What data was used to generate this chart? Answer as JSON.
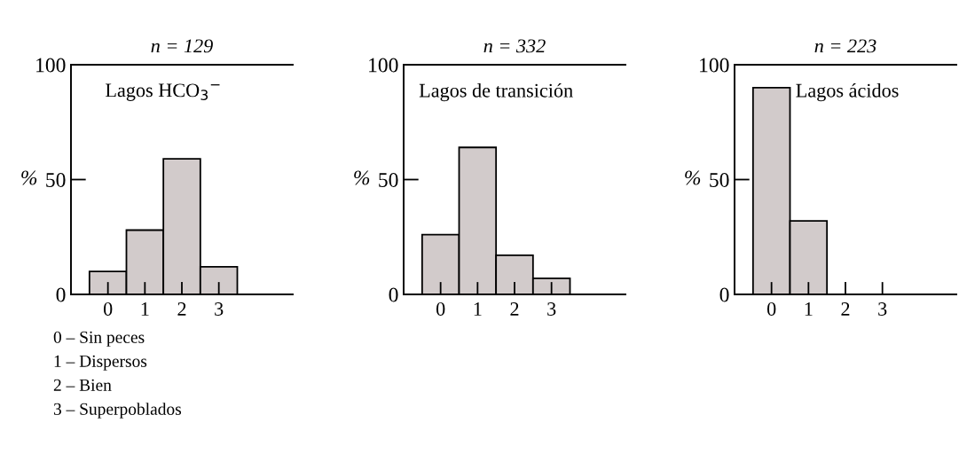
{
  "chart_data": [
    {
      "type": "bar",
      "title": "n = 129",
      "subtitle": "Lagos HCO$_{3}$$^{−}$",
      "ylabel": "%",
      "categories": [
        "0",
        "1",
        "2",
        "3"
      ],
      "values": [
        10,
        28,
        59,
        12
      ],
      "color": "#d2cbcb",
      "ylim": [
        0,
        100
      ],
      "yticks": [
        0,
        50,
        100
      ],
      "grid": false,
      "annotations": [
        "0 – Sin peces",
        "1 – Dispersos",
        "2 – Bien",
        "3 – Superpoblados"
      ]
    },
    {
      "type": "bar",
      "title": "n = 332",
      "subtitle": "Lagos de transición",
      "ylabel": "%",
      "categories": [
        "0",
        "1",
        "2",
        "3"
      ],
      "values": [
        26,
        64,
        17,
        7
      ],
      "color": "#d2cbcb",
      "ylim": [
        0,
        100
      ],
      "yticks": [
        0,
        50,
        100
      ],
      "grid": false
    },
    {
      "type": "bar",
      "title": "n = 223",
      "subtitle": "Lagos ácidos",
      "ylabel": "%",
      "categories": [
        "0",
        "1",
        "2",
        "3"
      ],
      "values": [
        90,
        32,
        0,
        0
      ],
      "color": "#d2cbcb",
      "ylim": [
        0,
        100
      ],
      "yticks": [
        0,
        50,
        100
      ],
      "grid": false
    }
  ]
}
